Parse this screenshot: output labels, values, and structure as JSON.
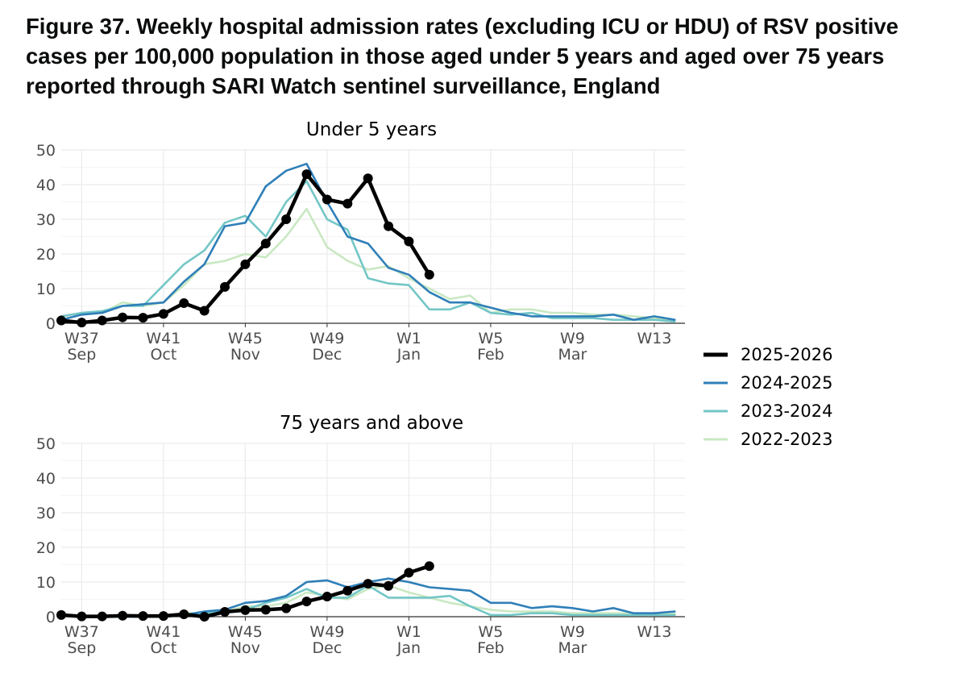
{
  "title": "Figure 37. Weekly hospital admission rates (excluding ICU or HDU) of RSV positive cases per 100,000 population in those aged under 5 years and aged over 75 years reported through SARI Watch sentinel surveillance, England",
  "colors": {
    "2025-2026": "#000000",
    "2024-2025": "#2f7fb8",
    "2023-2024": "#73c6c6",
    "2022-2023": "#c9e8c2",
    "grid": "#ebebeb",
    "axis": "#333333"
  },
  "chart_data": {
    "type": "line",
    "x_index_note": "0 = week 36; index i corresponds to week 36+i, wrapping after week 52",
    "x_ticks": [
      {
        "index": 1,
        "week": "W37",
        "month": "Sep"
      },
      {
        "index": 5,
        "week": "W41",
        "month": "Oct"
      },
      {
        "index": 9,
        "week": "W45",
        "month": "Nov"
      },
      {
        "index": 13,
        "week": "W49",
        "month": "Dec"
      },
      {
        "index": 17,
        "week": "W1",
        "month": "Jan"
      },
      {
        "index": 21,
        "week": "W5",
        "month": "Feb"
      },
      {
        "index": 25,
        "week": "W9",
        "month": "Mar"
      },
      {
        "index": 29,
        "week": "W13",
        "month": ""
      }
    ],
    "xlim": [
      0,
      30.5
    ],
    "ylim": [
      0,
      50
    ],
    "y_ticks": [
      0,
      10,
      20,
      30,
      40,
      50
    ],
    "legend": [
      "2025-2026",
      "2024-2025",
      "2023-2024",
      "2022-2023"
    ],
    "legend_position": "right",
    "panels": [
      {
        "title": "Under 5 years",
        "series": [
          {
            "name": "2022-2023",
            "values": [
              2,
              3,
              3,
              6,
              5,
              6,
              11,
              17,
              18,
              20,
              19,
              25,
              33,
              22,
              18,
              15.5,
              16.5,
              13,
              10,
              7,
              8,
              3,
              4,
              4,
              3,
              3,
              2.5,
              2.5,
              2,
              1.5,
              1
            ]
          },
          {
            "name": "2023-2024",
            "values": [
              2,
              3,
              3.5,
              5,
              5,
              11,
              17,
              21,
              29,
              31,
              25,
              35,
              41,
              30,
              27,
              13,
              11.5,
              11,
              4,
              4,
              6,
              3,
              2.5,
              3,
              1.5,
              1.5,
              1.5,
              1,
              1,
              1,
              0.5
            ]
          },
          {
            "name": "2024-2025",
            "values": [
              1,
              2.5,
              3,
              5,
              5.5,
              6,
              12,
              17,
              28,
              29,
              39.5,
              44,
              46,
              35,
              25,
              23,
              16,
              14,
              9,
              6,
              6,
              4.5,
              3,
              2,
              2,
              2,
              2,
              2.5,
              1,
              2,
              1
            ]
          },
          {
            "name": "2025-2026",
            "values": [
              0.8,
              0.2,
              0.8,
              1.7,
              1.6,
              2.7,
              5.8,
              3.6,
              10.5,
              17,
              23,
              30,
              43,
              35.7,
              34.5,
              41.8,
              28,
              23.6,
              14
            ]
          }
        ]
      },
      {
        "title": "75 years and above",
        "series": [
          {
            "name": "2022-2023",
            "values": [
              0.5,
              0,
              0,
              0,
              0,
              0.5,
              1,
              1,
              1.5,
              3,
              3,
              4,
              7,
              6,
              5,
              8,
              9,
              7,
              5.5,
              4,
              3,
              2,
              1.5,
              1.5,
              1.5,
              1,
              1,
              1,
              1,
              1,
              1
            ]
          },
          {
            "name": "2023-2024",
            "values": [
              0.5,
              0,
              0,
              0,
              0,
              0,
              0.5,
              1,
              1.5,
              2,
              4,
              5.5,
              8,
              5.5,
              5.5,
              9,
              5.5,
              5.5,
              5.5,
              6,
              3,
              0.5,
              0.5,
              1,
              1,
              0.5,
              0.5,
              0.5,
              0.5,
              0.5,
              0.5
            ]
          },
          {
            "name": "2024-2025",
            "values": [
              0.5,
              0,
              0,
              0,
              0,
              0,
              0.5,
              1.5,
              2,
              4,
              4.5,
              6,
              10,
              10.5,
              8.5,
              10,
              11,
              10,
              8.5,
              8,
              7.5,
              4,
              4,
              2.5,
              3,
              2.5,
              1.5,
              2.5,
              1,
              1,
              1.5
            ]
          },
          {
            "name": "2025-2026",
            "values": [
              0.5,
              0.1,
              0.1,
              0.3,
              0.2,
              0.2,
              0.7,
              0.0,
              1.4,
              1.9,
              2.0,
              2.4,
              4.4,
              5.8,
              7.5,
              9.5,
              8.9,
              12.7,
              14.6
            ]
          }
        ]
      }
    ]
  }
}
